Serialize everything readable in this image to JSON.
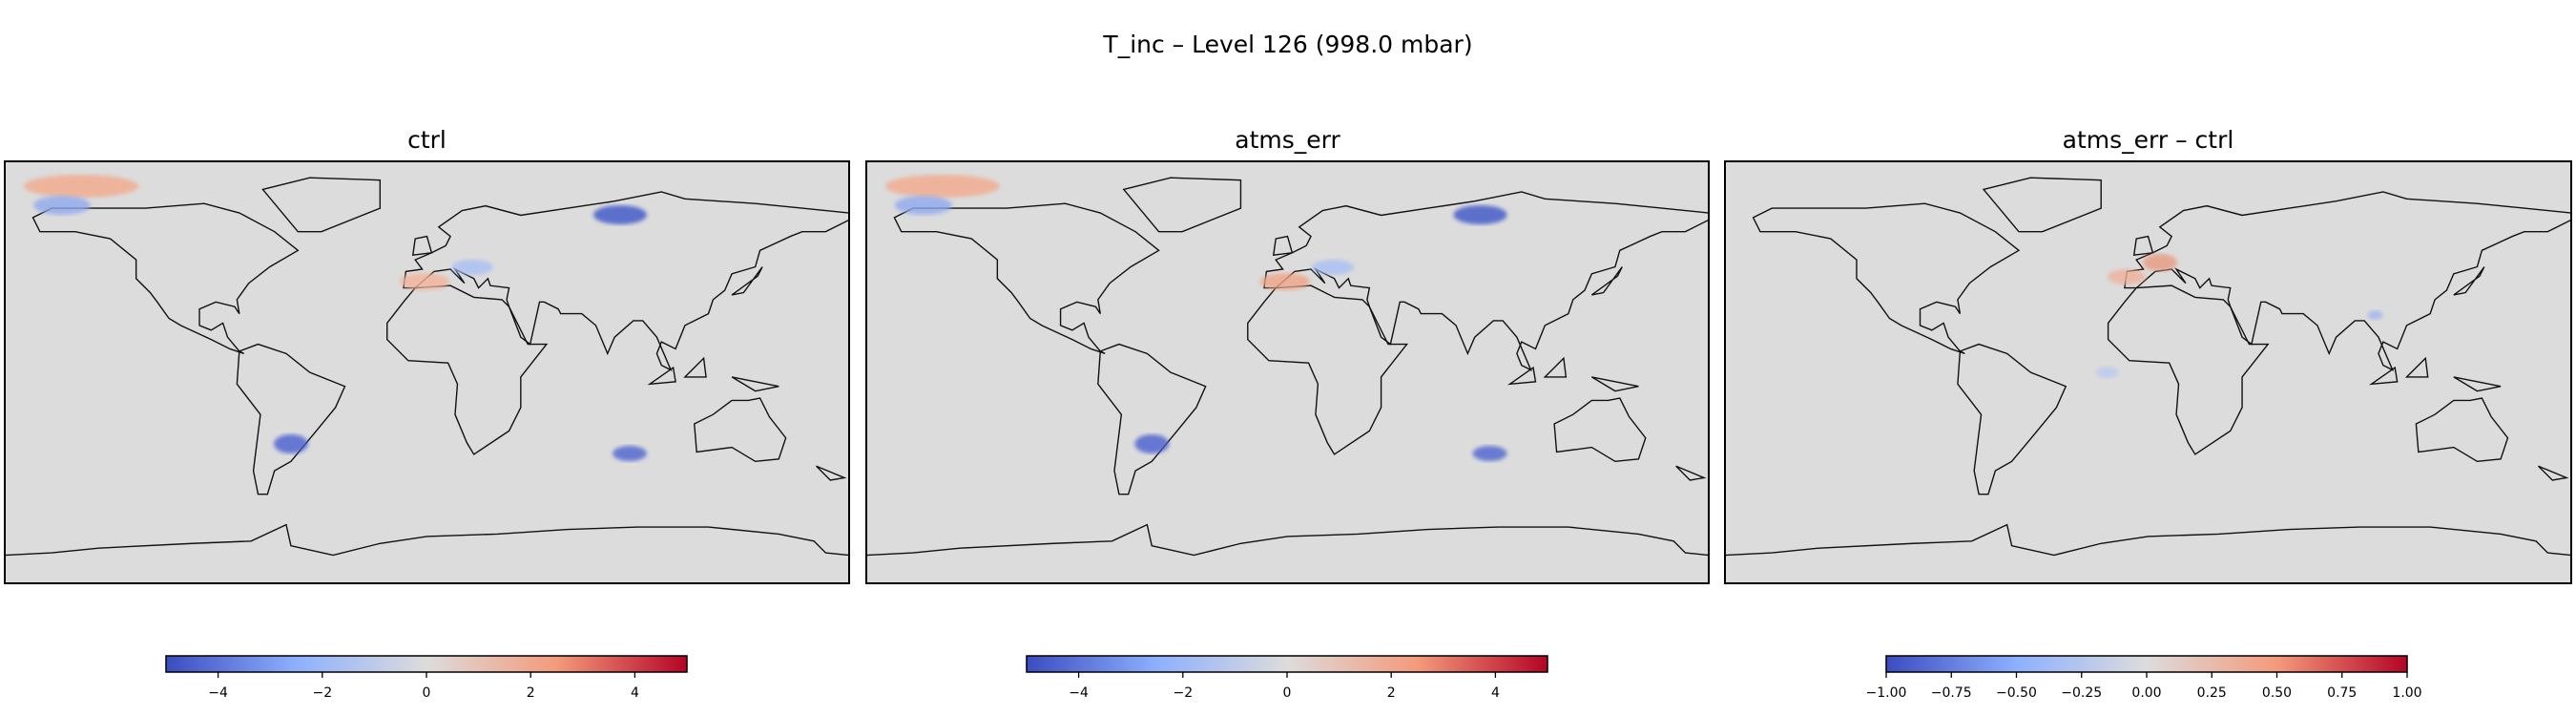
{
  "title": "T_inc – Level 126 (998.0 mbar)",
  "chart_data": [
    {
      "type": "map",
      "title": "ctrl",
      "clim": [
        -5,
        5
      ],
      "cticks": [
        {
          "value": -4,
          "label": "−4"
        },
        {
          "value": -2,
          "label": "−2"
        },
        0,
        2,
        4
      ]
    },
    {
      "type": "map",
      "title": "atms_err",
      "clim": [
        -5,
        5
      ],
      "cticks": [
        {
          "value": -4,
          "label": "−4"
        },
        {
          "value": -2,
          "label": "−2"
        },
        0,
        2,
        4
      ]
    },
    {
      "type": "map",
      "title": "atms_err – ctrl",
      "clim": [
        -1,
        1
      ],
      "cticks": [
        {
          "value": -1,
          "label": "−1.00"
        },
        {
          "value": -0.75,
          "label": "−0.75"
        },
        {
          "value": -0.5,
          "label": "−0.50"
        },
        {
          "value": -0.25,
          "label": "−0.25"
        },
        {
          "value": 0,
          "label": "0.00"
        },
        {
          "value": 0.25,
          "label": "0.25"
        },
        {
          "value": 0.5,
          "label": "0.50"
        },
        {
          "value": 0.75,
          "label": "0.75"
        },
        {
          "value": 1,
          "label": "1.00"
        }
      ]
    }
  ]
}
